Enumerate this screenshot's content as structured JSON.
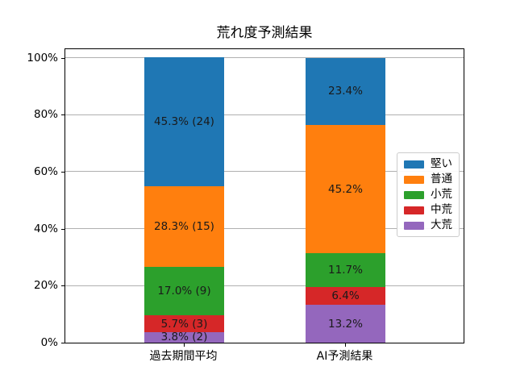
{
  "chart_data": {
    "type": "bar",
    "stacked": true,
    "title": "荒れ度予測結果",
    "categories": [
      "過去期間平均",
      "AI予測結果"
    ],
    "series": [
      {
        "name": "堅い",
        "color": "#1f77b4",
        "values": [
          45.3,
          23.4
        ],
        "labels": [
          "45.3% (24)",
          "23.4%"
        ]
      },
      {
        "name": "普通",
        "color": "#ff7f0e",
        "values": [
          28.3,
          45.2
        ],
        "labels": [
          "28.3% (15)",
          "45.2%"
        ]
      },
      {
        "name": "小荒",
        "color": "#2ca02c",
        "values": [
          17.0,
          11.7
        ],
        "labels": [
          "17.0% (9)",
          "11.7%"
        ]
      },
      {
        "name": "中荒",
        "color": "#d62728",
        "values": [
          5.7,
          6.4
        ],
        "labels": [
          "5.7% (3)",
          "6.4%"
        ]
      },
      {
        "name": "大荒",
        "color": "#9467bd",
        "values": [
          3.8,
          13.2
        ],
        "labels": [
          "3.8% (2)",
          "13.2%"
        ]
      }
    ],
    "yticks": [
      {
        "value": 0,
        "label": "0%"
      },
      {
        "value": 20,
        "label": "20%"
      },
      {
        "value": 40,
        "label": "40%"
      },
      {
        "value": 60,
        "label": "60%"
      },
      {
        "value": 80,
        "label": "80%"
      },
      {
        "value": 100,
        "label": "100%"
      }
    ],
    "ylim": [
      0,
      103.6
    ],
    "grid": "horizontal",
    "grid_color": "#b0b0b0",
    "legend_position": "center-right",
    "xlabel": "",
    "ylabel": ""
  }
}
